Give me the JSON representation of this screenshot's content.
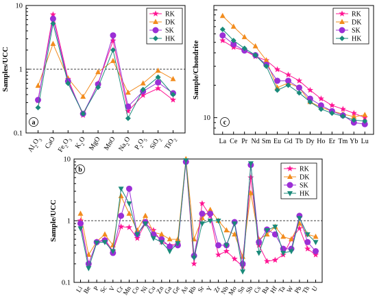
{
  "colors": {
    "RK": "#ff1493",
    "DK": "#f28c1e",
    "SK": "#9b2fd6",
    "HK": "#1a8a7a"
  },
  "chart_data": [
    {
      "panel": "a",
      "type": "line",
      "scale": "log",
      "ylabel": "Samples/UCC",
      "ylim": [
        0.1,
        10
      ],
      "yticks": [
        "0.1",
        "1",
        "10"
      ],
      "reference_line": 1,
      "categories": [
        "Al2O3",
        "CaO",
        "Fe2O3",
        "K2O",
        "MgO",
        "MnO",
        "Na2O",
        "P2O5",
        "SiO2",
        "TiO2"
      ],
      "legend_position": "top-right",
      "series": [
        {
          "name": "RK",
          "marker": "star",
          "values": [
            0.32,
            7.2,
            0.7,
            0.19,
            0.6,
            2.8,
            0.22,
            0.39,
            0.5,
            0.33
          ]
        },
        {
          "name": "DK",
          "marker": "triangle-up",
          "values": [
            0.55,
            2.5,
            0.72,
            0.37,
            0.9,
            1.35,
            0.43,
            0.6,
            0.95,
            0.7
          ]
        },
        {
          "name": "SK",
          "marker": "circle",
          "values": [
            0.33,
            6.2,
            0.65,
            0.2,
            0.58,
            3.4,
            0.26,
            0.45,
            0.62,
            0.42
          ]
        },
        {
          "name": "HK",
          "marker": "diamond",
          "values": [
            0.25,
            5.2,
            0.6,
            0.2,
            0.52,
            2.0,
            0.17,
            0.48,
            0.75,
            0.4
          ]
        }
      ]
    },
    {
      "panel": "c",
      "type": "line",
      "scale": "log",
      "ylabel": "Sample/Chondrite",
      "ylim": [
        7,
        110
      ],
      "yticks": [
        "10"
      ],
      "categories": [
        "La",
        "Ce",
        "Pr",
        "Nd",
        "Sm",
        "Eu",
        "Gd",
        "Tb",
        "Dy",
        "Ho",
        "Er",
        "Tm",
        "Yb",
        "Lu"
      ],
      "legend_position": "top-right",
      "series": [
        {
          "name": "RK",
          "marker": "star",
          "values": [
            52,
            45,
            42,
            37,
            34,
            28,
            25,
            22,
            18,
            15,
            13,
            12,
            11,
            10
          ]
        },
        {
          "name": "DK",
          "marker": "triangle-up",
          "values": [
            88,
            70,
            56,
            46,
            34,
            19,
            21,
            19,
            14,
            12.5,
            11.5,
            10.8,
            10.2,
            10.6
          ]
        },
        {
          "name": "SK",
          "marker": "circle",
          "values": [
            58,
            48,
            42,
            38,
            31,
            22,
            22,
            19,
            15,
            13,
            11.5,
            10.5,
            9,
            8.7
          ]
        },
        {
          "name": "HK",
          "marker": "diamond",
          "values": [
            66,
            52,
            44,
            38,
            30,
            18,
            20,
            17,
            14,
            12,
            11,
            10.3,
            9.5,
            9.3
          ]
        }
      ]
    },
    {
      "panel": "b",
      "type": "line",
      "scale": "log",
      "ylabel": "Sample/UCC",
      "ylim": [
        0.1,
        10
      ],
      "yticks": [
        "0.1",
        "1",
        "10"
      ],
      "reference_line": 1,
      "categories": [
        "Li",
        "Be",
        "P",
        "Sc",
        "V",
        "Cr",
        "Mn",
        "Co",
        "Ni",
        "Cu",
        "Zn",
        "Ga",
        "Ge",
        "As",
        "Rb",
        "Sr",
        "Y",
        "Zr",
        "Nb",
        "Mo",
        "Sn",
        "Sb",
        "Cs",
        "Ba",
        "Hf",
        "Ta",
        "W",
        "Pb",
        "Th",
        "U"
      ],
      "legend_position": "top-right",
      "series": [
        {
          "name": "RK",
          "marker": "star",
          "values": [
            1.0,
            0.2,
            0.45,
            0.5,
            0.32,
            0.8,
            0.78,
            0.52,
            0.9,
            0.7,
            0.45,
            0.4,
            0.42,
            9.0,
            0.2,
            1.9,
            1.2,
            0.28,
            0.32,
            0.24,
            0.18,
            5.0,
            0.4,
            0.22,
            0.23,
            0.28,
            0.5,
            0.75,
            0.35,
            0.28
          ]
        },
        {
          "name": "DK",
          "marker": "triangle-up",
          "values": [
            1.3,
            0.28,
            0.46,
            0.6,
            0.4,
            2.5,
            1.3,
            0.7,
            1.2,
            0.65,
            0.6,
            0.5,
            0.5,
            10.0,
            0.5,
            1.1,
            1.5,
            1.0,
            0.7,
            0.6,
            0.26,
            2.8,
            0.5,
            0.6,
            0.8,
            0.55,
            0.5,
            0.9,
            0.6,
            0.55
          ]
        },
        {
          "name": "SK",
          "marker": "circle",
          "values": [
            0.9,
            0.2,
            0.45,
            0.48,
            0.3,
            1.2,
            3.3,
            0.6,
            0.95,
            0.6,
            0.5,
            0.38,
            0.4,
            9.0,
            0.27,
            1.3,
            1.3,
            0.4,
            0.4,
            0.95,
            0.2,
            8.0,
            0.45,
            0.72,
            0.6,
            0.35,
            0.35,
            1.2,
            0.45,
            0.32
          ]
        },
        {
          "name": "HK",
          "marker": "triangle-down",
          "values": [
            0.75,
            0.17,
            0.44,
            0.45,
            0.32,
            3.3,
            1.9,
            0.6,
            0.9,
            0.52,
            0.45,
            0.32,
            0.43,
            9.5,
            0.25,
            0.9,
            1.0,
            1.0,
            0.4,
            0.9,
            0.15,
            8.5,
            0.3,
            0.7,
            0.8,
            0.3,
            0.32,
            1.1,
            0.6,
            0.45
          ]
        }
      ]
    }
  ]
}
